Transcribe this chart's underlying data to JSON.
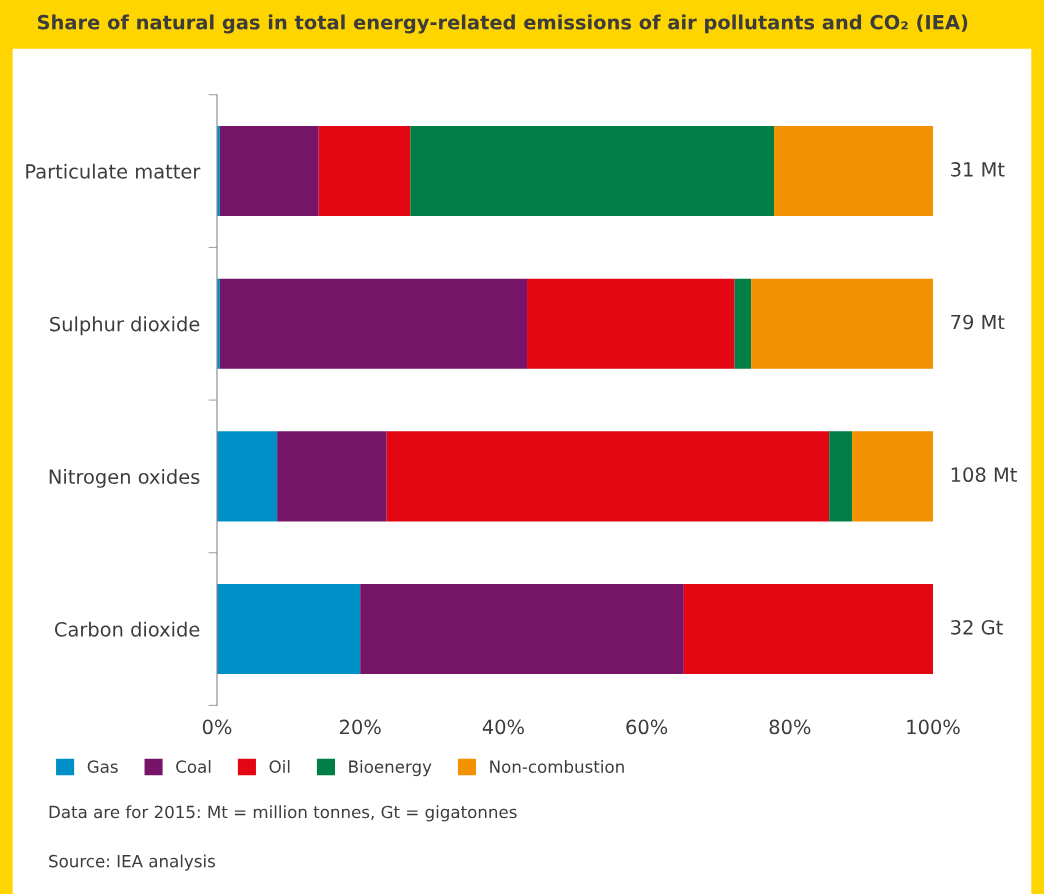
{
  "chart_data": {
    "type": "bar",
    "orientation": "horizontal",
    "stacked": true,
    "title": "Share of natural gas in total energy-related emissions of air pollutants and CO₂ (IEA)",
    "categories": [
      "Particulate matter",
      "Sulphur dioxide",
      "Nitrogen oxides",
      "Carbon dioxide"
    ],
    "series": [
      {
        "name": "Gas",
        "color": "#0090c8",
        "values": [
          0.4,
          0.4,
          8.4,
          20.0
        ]
      },
      {
        "name": "Coal",
        "color": "#761467",
        "values": [
          13.8,
          42.9,
          15.3,
          45.2
        ]
      },
      {
        "name": "Oil",
        "color": "#e30613",
        "values": [
          12.8,
          29.0,
          61.8,
          34.8
        ]
      },
      {
        "name": "Bioenergy",
        "color": "#007e47",
        "values": [
          50.8,
          2.3,
          3.2,
          0
        ]
      },
      {
        "name": "Non-combustion",
        "color": "#f39200",
        "values": [
          22.2,
          25.4,
          11.3,
          0
        ]
      }
    ],
    "xlim": [
      0,
      100
    ],
    "xticks": [
      {
        "value": 0,
        "label": "0%"
      },
      {
        "value": 20,
        "label": "20%"
      },
      {
        "value": 40,
        "label": "40%"
      },
      {
        "value": 60,
        "label": "60%"
      },
      {
        "value": 80,
        "label": "80%"
      },
      {
        "value": 100,
        "label": "100%"
      }
    ],
    "grid": false,
    "legend": "bottom",
    "annotations": [
      "31 Mt",
      "79 Mt",
      "108 Mt",
      "32 Gt",
      "Data are for 2015: Mt = million tonnes, Gt = gigatonnes",
      "Source: IEA analysis"
    ]
  }
}
